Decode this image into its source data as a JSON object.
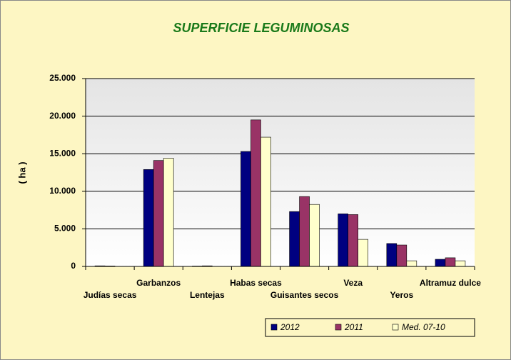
{
  "chart_data": {
    "type": "bar",
    "title": "SUPERFICIE LEGUMINOSAS",
    "y_label": "( ha )",
    "categories": [
      "Judías secas",
      "Garbanzos",
      "Lentejas",
      "Habas secas",
      "Guisantes secos",
      "Veza",
      "Yeros",
      "Altramuz dulce"
    ],
    "series": [
      {
        "name": "2012",
        "color": "#000080",
        "values": [
          80,
          12900,
          50,
          15300,
          7300,
          7000,
          3050,
          950
        ]
      },
      {
        "name": "2011",
        "color": "#993366",
        "values": [
          60,
          14100,
          80,
          19500,
          9300,
          6900,
          2850,
          1150
        ]
      },
      {
        "name": "Med. 07-10",
        "color": "#ffffcc",
        "values": [
          0,
          14400,
          0,
          17200,
          8250,
          3600,
          750,
          750
        ]
      }
    ],
    "ylim": [
      0,
      25000
    ],
    "yticks": [
      0,
      {
        "value": 5000,
        "label": "5.000"
      },
      {
        "value": 10000,
        "label": "10.000"
      },
      {
        "value": 15000,
        "label": "15.000"
      },
      {
        "value": 20000,
        "label": "20.000"
      },
      {
        "value": 25000,
        "label": "25.000"
      }
    ],
    "grid": true,
    "legend": "bottom-right"
  }
}
